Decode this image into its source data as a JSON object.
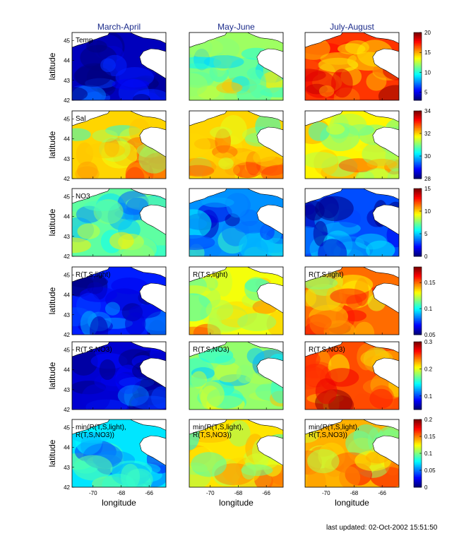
{
  "footer": {
    "updated_label": "last updated: 02-Oct-2002 15:51:50"
  },
  "chart_data": {
    "type": "heatmap",
    "columns": [
      "March-April",
      "May-June",
      "July-August"
    ],
    "xlabel": "longitude",
    "ylabel": "latitude",
    "x_ticks": [
      "-70",
      "-68",
      "-66"
    ],
    "y_ticks": [
      "42",
      "43",
      "44",
      "45"
    ],
    "xlim": [
      -71.5,
      -64.8
    ],
    "ylim": [
      42,
      45.4
    ],
    "rows": [
      {
        "label": [
          "Temp"
        ],
        "colorbar_ticks": [
          "20",
          "15",
          "10",
          "5"
        ],
        "clim": [
          3,
          20
        ],
        "panel_means": [
          4,
          12,
          17
        ]
      },
      {
        "label": [
          "Sal"
        ],
        "colorbar_ticks": [
          "34",
          "32",
          "30",
          "28"
        ],
        "clim": [
          28,
          34
        ],
        "panel_means": [
          32,
          32,
          31.8
        ]
      },
      {
        "label": [
          "NO3"
        ],
        "colorbar_ticks": [
          "15",
          "10",
          "5",
          "0"
        ],
        "clim": [
          0,
          15
        ],
        "panel_means": [
          7,
          4,
          3
        ]
      },
      {
        "label": [
          "R(T,S,light)"
        ],
        "colorbar_ticks": [
          "0.15",
          "0.1",
          "0.05"
        ],
        "clim": [
          0.05,
          0.18
        ],
        "panel_means": [
          0.07,
          0.13,
          0.15
        ]
      },
      {
        "label": [
          "R(T,S,NO3)"
        ],
        "colorbar_ticks": [
          "0.3",
          "0.2",
          "0.1"
        ],
        "clim": [
          0.05,
          0.3
        ],
        "panel_means": [
          0.07,
          0.18,
          0.25
        ]
      },
      {
        "label": [
          "min(R(T,S,light),",
          "R(T,S,NO3))"
        ],
        "colorbar_ticks": [
          "0.2",
          "0.15",
          "0.1",
          "0.05",
          "0"
        ],
        "clim": [
          0,
          0.2
        ],
        "panel_means": [
          0.07,
          0.13,
          0.14
        ]
      }
    ]
  }
}
